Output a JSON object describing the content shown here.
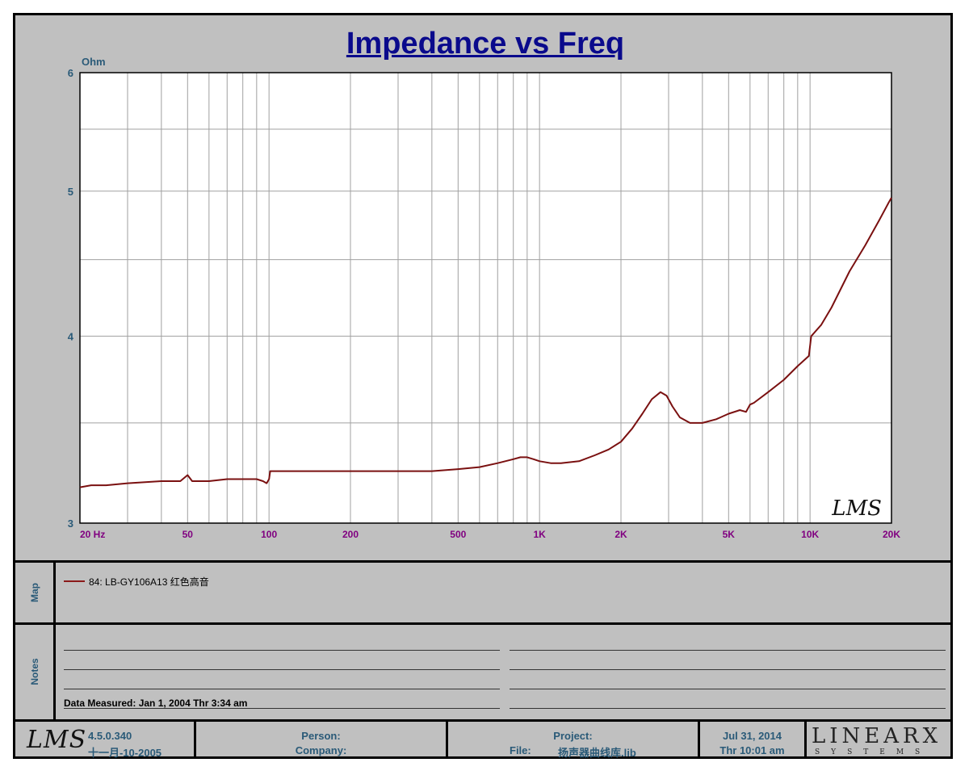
{
  "chart_data": {
    "type": "line",
    "title": "Impedance vs Freq",
    "ylabel": "Ohm",
    "x_scale": "log",
    "y_scale": "log",
    "xlim": [
      20,
      20000
    ],
    "ylim": [
      3,
      6
    ],
    "x_tick_labels": [
      {
        "value": 20,
        "label": "20  Hz"
      },
      {
        "value": 50,
        "label": "50"
      },
      {
        "value": 100,
        "label": "100"
      },
      {
        "value": 200,
        "label": "200"
      },
      {
        "value": 500,
        "label": "500"
      },
      {
        "value": 1000,
        "label": "1K"
      },
      {
        "value": 2000,
        "label": "2K"
      },
      {
        "value": 5000,
        "label": "5K"
      },
      {
        "value": 10000,
        "label": "10K"
      },
      {
        "value": 20000,
        "label": "20K"
      }
    ],
    "y_tick_labels": [
      {
        "value": 3,
        "label": "3"
      },
      {
        "value": 4,
        "label": "4"
      },
      {
        "value": 5,
        "label": "5"
      },
      {
        "value": 6,
        "label": "6"
      }
    ],
    "y_minor_gridlines": [
      3.5,
      4.5,
      5.5
    ],
    "grid": true,
    "series": [
      {
        "name": "84: LB-GY106A13 红色高音",
        "color": "#7a1010",
        "x": [
          20,
          22,
          25,
          30,
          40,
          47,
          50,
          52,
          60,
          70,
          80,
          90,
          95,
          98,
          100,
          101,
          110,
          150,
          200,
          300,
          400,
          500,
          600,
          700,
          800,
          850,
          900,
          950,
          1000,
          1100,
          1200,
          1400,
          1600,
          1800,
          2000,
          2200,
          2400,
          2600,
          2800,
          2950,
          3100,
          3300,
          3600,
          4000,
          4500,
          5000,
          5500,
          5800,
          6000,
          6200,
          7000,
          8000,
          9000,
          9900,
          10100,
          11000,
          12000,
          14000,
          16000,
          18000,
          19500,
          20000
        ],
        "y": [
          3.17,
          3.18,
          3.18,
          3.19,
          3.2,
          3.2,
          3.23,
          3.2,
          3.2,
          3.21,
          3.21,
          3.21,
          3.2,
          3.19,
          3.21,
          3.25,
          3.25,
          3.25,
          3.25,
          3.25,
          3.25,
          3.26,
          3.27,
          3.29,
          3.31,
          3.32,
          3.32,
          3.31,
          3.3,
          3.29,
          3.29,
          3.3,
          3.33,
          3.36,
          3.4,
          3.47,
          3.55,
          3.63,
          3.67,
          3.65,
          3.59,
          3.53,
          3.5,
          3.5,
          3.52,
          3.55,
          3.57,
          3.56,
          3.6,
          3.61,
          3.67,
          3.74,
          3.82,
          3.88,
          4.0,
          4.07,
          4.18,
          4.42,
          4.6,
          4.78,
          4.91,
          4.95
        ]
      }
    ]
  },
  "watermark": "LMS",
  "map": {
    "label": "Map",
    "legend_label": "84: LB-GY106A13 红色高音"
  },
  "notes": {
    "label": "Notes",
    "measured": "Data Measured: Jan  1, 2004  Thr  3:34 am"
  },
  "footer": {
    "logo": "LMS",
    "version": "4.5.0.340",
    "build_date": "十一月-10-2005",
    "person_label": "Person:",
    "company_label": "Company:",
    "project_label": "Project:",
    "file_label": "File:",
    "file_name": "扬声器曲线库.lib",
    "date": "Jul 31, 2014",
    "time": "Thr 10:01 am",
    "brand_big": "LINEARX",
    "brand_small": "SYSTEMS"
  },
  "colors": {
    "background": "#c0c0c0",
    "plot_bg": "#ffffff",
    "grid": "#a0a0a0",
    "title": "#0a0a8c",
    "y_ticks": "#2a5a78",
    "x_ticks": "#800080",
    "curve": "#7a1010"
  }
}
